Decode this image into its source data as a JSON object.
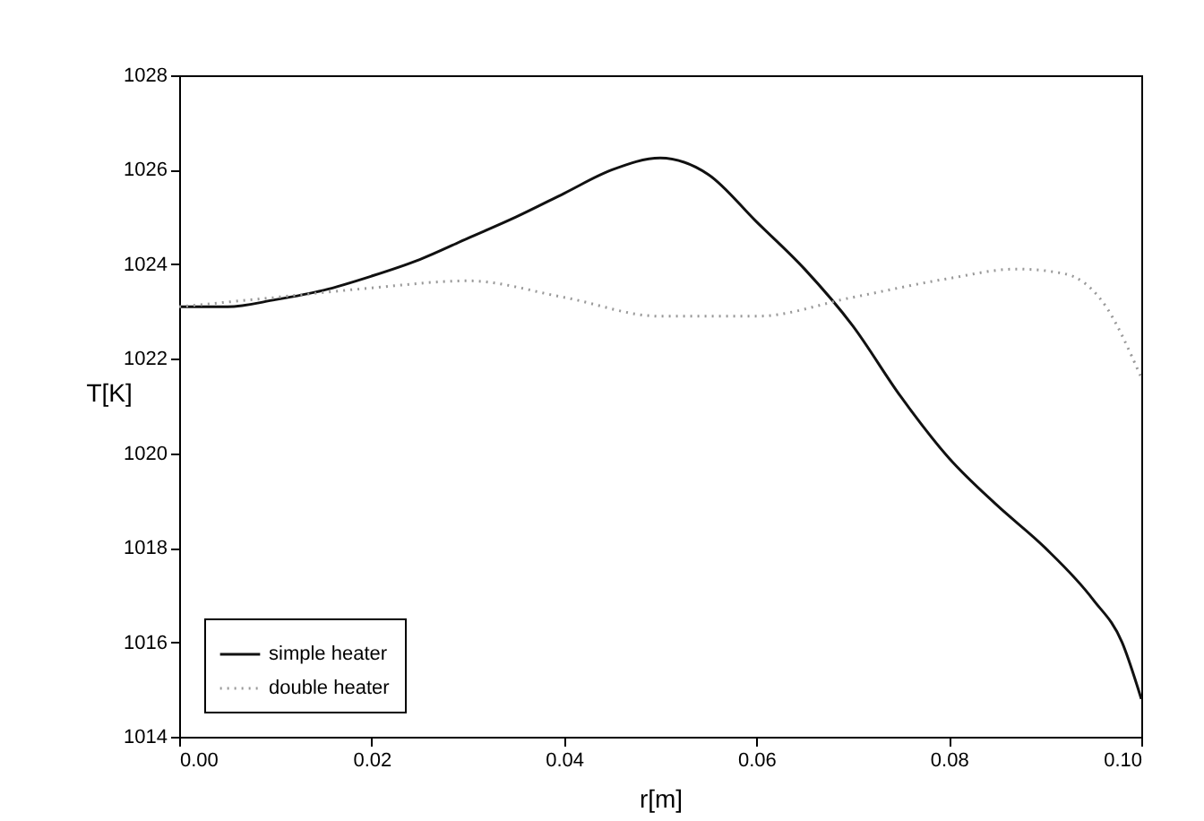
{
  "chart_data": {
    "type": "line",
    "xlabel": "r[m]",
    "ylabel": "T[K]",
    "xlim": [
      0,
      0.1
    ],
    "xticks": [
      {
        "value": 0,
        "label": "0.00"
      },
      {
        "value": 0.02,
        "label": "0.02"
      },
      {
        "value": 0.04,
        "label": "0.04"
      },
      {
        "value": 0.06,
        "label": "0.06"
      },
      {
        "value": 0.08,
        "label": "0.08"
      },
      {
        "value": 0.1,
        "label": "0.10"
      }
    ],
    "ylim": [
      1014,
      1028
    ],
    "yticks": [
      1014,
      1016,
      1018,
      1020,
      1022,
      1024,
      1026,
      1028
    ],
    "grid": false,
    "legend": "bottom left",
    "series": [
      {
        "name": "simple heater",
        "color": "#111111",
        "line_style": "solid",
        "x": [
          0,
          0.005,
          0.01,
          0.015,
          0.02,
          0.025,
          0.03,
          0.035,
          0.04,
          0.045,
          0.05,
          0.055,
          0.06,
          0.065,
          0.07,
          0.075,
          0.08,
          0.085,
          0.09,
          0.095,
          0.098,
          0.1
        ],
        "values": [
          1023.1,
          1023.1,
          1023.25,
          1023.45,
          1023.75,
          1024.1,
          1024.55,
          1025.0,
          1025.5,
          1026.0,
          1026.25,
          1025.9,
          1024.9,
          1023.9,
          1022.7,
          1021.2,
          1019.9,
          1018.9,
          1018.0,
          1016.9,
          1016.0,
          1014.8
        ]
      },
      {
        "name": "double heater",
        "color": "#999999",
        "line_style": "dotted",
        "x": [
          0,
          0.01,
          0.02,
          0.03,
          0.04,
          0.05,
          0.06,
          0.07,
          0.08,
          0.087,
          0.092,
          0.096,
          0.1
        ],
        "values": [
          1023.1,
          1023.3,
          1023.5,
          1023.65,
          1023.3,
          1022.9,
          1022.9,
          1023.3,
          1023.7,
          1023.9,
          1023.8,
          1023.2,
          1021.6
        ]
      }
    ]
  }
}
